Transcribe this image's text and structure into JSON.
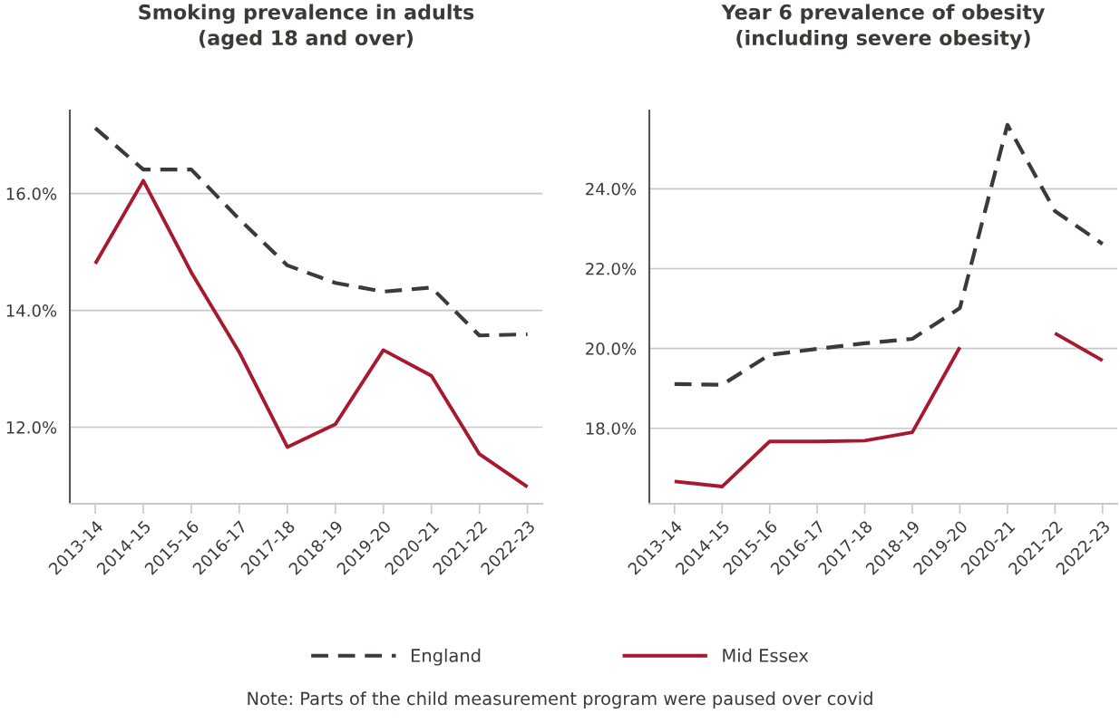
{
  "chart_data": [
    {
      "type": "line",
      "title": "Smoking prevalence in adults\n(aged 18 and over)",
      "categories": [
        "2013-14",
        "2014-15",
        "2015-16",
        "2016-17",
        "2017-18",
        "2018-19",
        "2019-20",
        "2020-21",
        "2021-22",
        "2022-23"
      ],
      "series": [
        {
          "name": "England",
          "color": "#3d3935",
          "line_style": "dashed",
          "values": [
            17.12,
            16.41,
            16.41,
            15.56,
            14.77,
            14.47,
            14.32,
            14.39,
            13.57,
            13.59
          ]
        },
        {
          "name": "Mid Essex",
          "color": "#a6192e",
          "line_style": "solid",
          "values": [
            14.8,
            16.22,
            14.65,
            13.28,
            11.66,
            12.05,
            13.32,
            12.88,
            11.54,
            10.98
          ]
        }
      ],
      "ylim": [
        10.69,
        17.42
      ],
      "yticks": [
        {
          "value": 12,
          "label": "12.0%"
        },
        {
          "value": 14,
          "label": "14.0%"
        },
        {
          "value": 16,
          "label": "16.0%"
        }
      ],
      "grid": "y",
      "legend": "bottom",
      "marker": "none"
    },
    {
      "type": "line",
      "title": "Year 6 prevalence of obesity\n(including severe obesity)",
      "categories": [
        "2013-14",
        "2014-15",
        "2015-16",
        "2016-17",
        "2017-18",
        "2018-19",
        "2019-20",
        "2020-21",
        "2021-22",
        "2022-23"
      ],
      "series": [
        {
          "name": "England",
          "color": "#3d3935",
          "line_style": "dashed",
          "values": [
            19.11,
            19.09,
            19.84,
            19.99,
            20.13,
            20.24,
            21.01,
            25.6,
            23.44,
            22.62
          ]
        },
        {
          "name": "Mid Essex",
          "color": "#a6192e",
          "line_style": "solid",
          "values": [
            16.67,
            16.54,
            17.67,
            17.67,
            17.69,
            17.9,
            20.03,
            null,
            20.38,
            19.7
          ]
        }
      ],
      "ylim": [
        16.11,
        25.96
      ],
      "yticks": [
        {
          "value": 18,
          "label": "18.0%"
        },
        {
          "value": 20,
          "label": "20.0%"
        },
        {
          "value": 22,
          "label": "22.0%"
        },
        {
          "value": 24,
          "label": "24.0%"
        }
      ],
      "grid": "y",
      "marker": "none",
      "annotations": [
        "Note: Parts of the child measurement program were paused over covid"
      ]
    }
  ]
}
